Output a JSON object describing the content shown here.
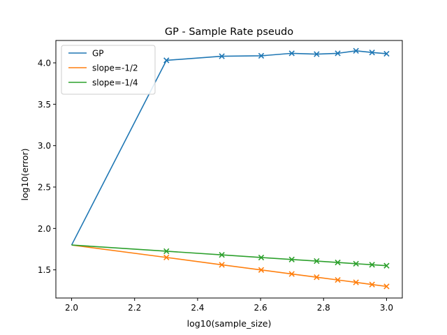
{
  "chart_data": {
    "type": "line",
    "title": "GP - Sample Rate pseudo",
    "xlabel": "log10(sample_size)",
    "ylabel": "log10(error)",
    "xlim": [
      1.95,
      3.05
    ],
    "ylim": [
      1.16,
      4.27
    ],
    "xticks": [
      2.0,
      2.2,
      2.4,
      2.6,
      2.8,
      3.0
    ],
    "xtick_labels": [
      "2.0",
      "2.2",
      "2.4",
      "2.6",
      "2.8",
      "3.0"
    ],
    "yticks": [
      1.5,
      2.0,
      2.5,
      3.0,
      3.5,
      4.0
    ],
    "ytick_labels": [
      "1.5",
      "2.0",
      "2.5",
      "3.0",
      "3.5",
      "4.0"
    ],
    "grid": false,
    "legend_position": "top-left",
    "x": [
      2.0,
      2.301,
      2.477,
      2.602,
      2.699,
      2.778,
      2.845,
      2.903,
      2.954,
      3.0
    ],
    "series": [
      {
        "name": "GP",
        "color": "#1f77b4",
        "values": [
          1.8,
          4.03,
          4.08,
          4.085,
          4.115,
          4.105,
          4.115,
          4.145,
          4.125,
          4.11
        ]
      },
      {
        "name": "slope=-1/2",
        "color": "#ff7f0e",
        "values": [
          1.8,
          1.65,
          1.561,
          1.499,
          1.45,
          1.411,
          1.378,
          1.349,
          1.323,
          1.3
        ]
      },
      {
        "name": "slope=-1/4",
        "color": "#2ca02c",
        "values": [
          1.8,
          1.725,
          1.681,
          1.649,
          1.625,
          1.606,
          1.589,
          1.574,
          1.562,
          1.55
        ]
      }
    ]
  }
}
